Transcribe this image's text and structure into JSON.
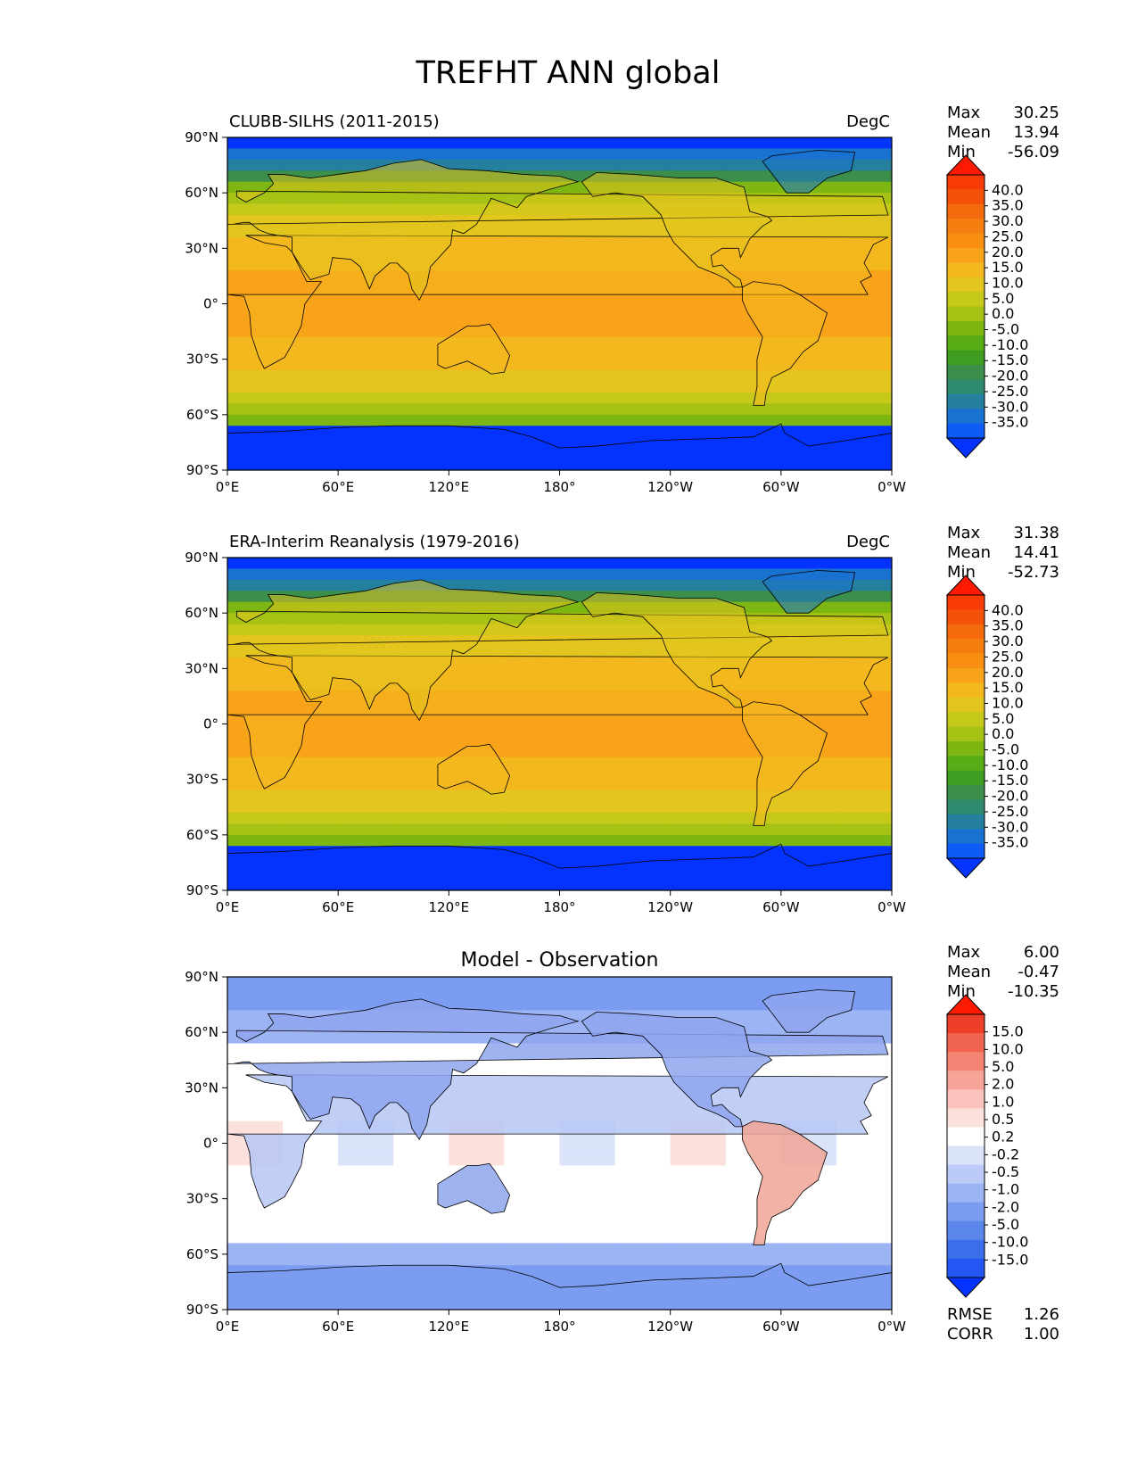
{
  "figure": {
    "title": "TREFHT ANN global"
  },
  "colors": {
    "abs_levels": [
      "#0433ff",
      "#0f5bf5",
      "#1a72d0",
      "#257f9f",
      "#2e8a6e",
      "#3c8f4a",
      "#3e9d20",
      "#58ac16",
      "#7eb712",
      "#a6c315",
      "#c6c91a",
      "#e2c51e",
      "#f4b81f",
      "#f8a31a",
      "#f88e12",
      "#f47f10",
      "#f46a0c",
      "#f45208",
      "#f83b05",
      "#fc1a02"
    ],
    "diff_levels": [
      "#0433ff",
      "#2456f3",
      "#3b6ee8",
      "#5b86ea",
      "#7b9cf0",
      "#9db4f4",
      "#bccaf7",
      "#dbe3fb",
      "#ffffff",
      "#fce0dc",
      "#f9c3bc",
      "#f6a498",
      "#f38474",
      "#f06450",
      "#ed3e28",
      "#fc1a02"
    ],
    "coast": "#000000"
  },
  "chart_data": [
    {
      "type": "heatmap",
      "name": "model",
      "title": "CLUBB-SILHS (2011-2015)",
      "units": "DegC",
      "stats": [
        {
          "label": "Max",
          "value": "30.25"
        },
        {
          "label": "Mean",
          "value": "13.94"
        },
        {
          "label": "Min",
          "value": "-56.09"
        }
      ],
      "colorbar_ticks": [
        "40.0",
        "35.0",
        "30.0",
        "25.0",
        "20.0",
        "15.0",
        "10.0",
        "5.0",
        "0.0",
        "-5.0",
        "-10.0",
        "-15.0",
        "-20.0",
        "-25.0",
        "-30.0",
        "-35.0"
      ],
      "xticks": [
        "0°E",
        "60°E",
        "120°E",
        "180°",
        "120°W",
        "60°W",
        "0°W"
      ],
      "yticks": [
        "90°N",
        "60°N",
        "30°N",
        "0°",
        "30°S",
        "60°S",
        "90°S"
      ],
      "xlim": [
        0,
        360
      ],
      "ylim": [
        -90,
        90
      ]
    },
    {
      "type": "heatmap",
      "name": "obs",
      "title": "ERA-Interim Reanalysis (1979-2016)",
      "units": "DegC",
      "stats": [
        {
          "label": "Max",
          "value": "31.38"
        },
        {
          "label": "Mean",
          "value": "14.41"
        },
        {
          "label": "Min",
          "value": "-52.73"
        }
      ],
      "colorbar_ticks": [
        "40.0",
        "35.0",
        "30.0",
        "25.0",
        "20.0",
        "15.0",
        "10.0",
        "5.0",
        "0.0",
        "-5.0",
        "-10.0",
        "-15.0",
        "-20.0",
        "-25.0",
        "-30.0",
        "-35.0"
      ],
      "xticks": [
        "0°E",
        "60°E",
        "120°E",
        "180°",
        "120°W",
        "60°W",
        "0°W"
      ],
      "yticks": [
        "90°N",
        "60°N",
        "30°N",
        "0°",
        "30°S",
        "60°S",
        "90°S"
      ],
      "xlim": [
        0,
        360
      ],
      "ylim": [
        -90,
        90
      ]
    },
    {
      "type": "heatmap",
      "name": "diff",
      "title": "Model - Observation",
      "units": "",
      "stats": [
        {
          "label": "Max",
          "value": "6.00"
        },
        {
          "label": "Mean",
          "value": "-0.47"
        },
        {
          "label": "Min",
          "value": "-10.35"
        }
      ],
      "colorbar_ticks": [
        "15.0",
        "10.0",
        "5.0",
        "2.0",
        "1.0",
        "0.5",
        "0.2",
        "-0.2",
        "-0.5",
        "-1.0",
        "-2.0",
        "-5.0",
        "-10.0",
        "-15.0"
      ],
      "xticks": [
        "0°E",
        "60°E",
        "120°E",
        "180°",
        "120°W",
        "60°W",
        "0°W"
      ],
      "yticks": [
        "90°N",
        "60°N",
        "30°N",
        "0°",
        "30°S",
        "60°S",
        "90°S"
      ],
      "xlim": [
        0,
        360
      ],
      "ylim": [
        -90,
        90
      ],
      "metrics": [
        {
          "label": "RMSE",
          "value": "1.26"
        },
        {
          "label": "CORR",
          "value": "1.00"
        }
      ]
    }
  ]
}
